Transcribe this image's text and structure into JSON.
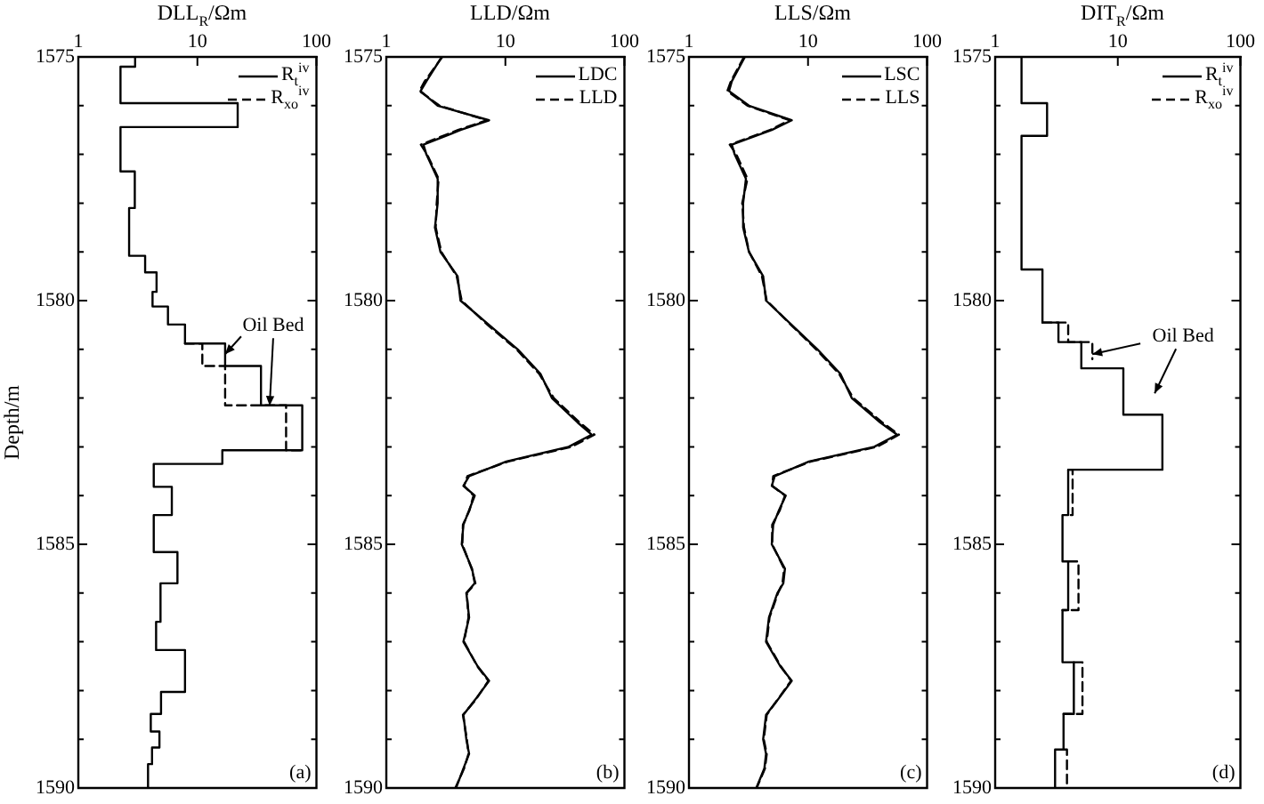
{
  "chart_data": [
    {
      "type": "line",
      "xlabel": "DLL$_{R}$/Ωm",
      "ylabel": "Depth/m",
      "log": "x",
      "xlim": [
        1,
        100
      ],
      "xticks": [
        1,
        10,
        100
      ],
      "ylim": [
        1590,
        1575
      ],
      "yticks": [
        1575,
        {
          "value": 1576,
          "label": null
        },
        {
          "value": 1577,
          "label": null
        },
        {
          "value": 1578,
          "label": null
        },
        {
          "value": 1579,
          "label": null
        },
        1580,
        {
          "value": 1581,
          "label": null
        },
        {
          "value": 1582,
          "label": null
        },
        {
          "value": 1583,
          "label": null
        },
        {
          "value": 1584,
          "label": null
        },
        1585,
        {
          "value": 1586,
          "label": null
        },
        {
          "value": 1587,
          "label": null
        },
        {
          "value": 1588,
          "label": null
        },
        {
          "value": 1589,
          "label": null
        },
        1590
      ],
      "grid": false,
      "legend": "top right",
      "marker": "none",
      "series": [
        {
          "name": "R$_{t}$$^{iv}$",
          "color": "#000000",
          "line_style": "solid",
          "x": [
            3.0,
            3.0,
            2.26,
            2.26,
            21.8,
            21.8,
            2.26,
            2.26,
            2.98,
            2.98,
            2.67,
            2.67,
            3.64,
            3.64,
            4.54,
            4.54,
            4.2,
            4.2,
            5.66,
            5.66,
            7.87,
            7.87,
            17.1,
            17.1,
            34.2,
            34.2,
            76,
            76,
            16.2,
            16.2,
            4.3,
            4.3,
            6.1,
            6.1,
            4.3,
            4.3,
            6.8,
            6.8,
            4.9,
            4.9,
            4.5,
            4.5,
            7.87,
            7.87,
            4.95,
            4.95,
            4.06,
            4.06,
            4.8,
            4.8,
            4.16,
            4.16,
            3.85,
            3.85
          ],
          "values": [
            1575,
            1575.2,
            1575.2,
            1575.95,
            1575.95,
            1576.44,
            1576.44,
            1577.35,
            1577.35,
            1578.1,
            1578.1,
            1579.08,
            1579.08,
            1579.42,
            1579.42,
            1579.82,
            1579.82,
            1580.12,
            1580.12,
            1580.49,
            1580.49,
            1580.88,
            1580.88,
            1581.34,
            1581.34,
            1582.15,
            1582.15,
            1583.07,
            1583.07,
            1583.35,
            1583.35,
            1583.82,
            1583.82,
            1584.4,
            1584.4,
            1585.16,
            1585.16,
            1585.8,
            1585.8,
            1586.59,
            1586.59,
            1587.17,
            1587.17,
            1588.03,
            1588.03,
            1588.48,
            1588.48,
            1588.84,
            1588.84,
            1589.17,
            1589.17,
            1589.51,
            1589.51,
            1590
          ]
        },
        {
          "name": "R$_{xo}$$^{iv}$",
          "color": "#000000",
          "line_style": "dashed",
          "x": [
            7.87,
            11,
            11,
            17.1,
            17.1,
            55.6,
            55.6,
            76
          ],
          "values": [
            1580.88,
            1580.88,
            1581.34,
            1581.34,
            1582.15,
            1582.15,
            1583.07,
            1583.07
          ]
        }
      ],
      "annotations": [
        {
          "text": "Oil Bed",
          "x": 17.1,
          "y": 1581.1
        },
        "(a)"
      ]
    },
    {
      "type": "line",
      "xlabel": "LLD/Ωm",
      "log": "x",
      "xlim": [
        1,
        100
      ],
      "xticks": [
        1,
        10,
        100
      ],
      "ylim": [
        1590,
        1575
      ],
      "yticks": [
        1575,
        {
          "value": 1576,
          "label": null
        },
        {
          "value": 1577,
          "label": null
        },
        {
          "value": 1578,
          "label": null
        },
        {
          "value": 1579,
          "label": null
        },
        1580,
        {
          "value": 1581,
          "label": null
        },
        {
          "value": 1582,
          "label": null
        },
        {
          "value": 1583,
          "label": null
        },
        {
          "value": 1584,
          "label": null
        },
        1585,
        {
          "value": 1586,
          "label": null
        },
        {
          "value": 1587,
          "label": null
        },
        {
          "value": 1588,
          "label": null
        },
        {
          "value": 1589,
          "label": null
        },
        1590
      ],
      "grid": false,
      "legend": "top right",
      "marker": "none",
      "series": [
        {
          "name": "LDC",
          "color": "#000000",
          "line_style": "solid",
          "x": [
            2.92,
            2.17,
            1.94,
            2.7,
            7.3,
            4.2,
            2.05,
            2.17,
            2.7,
            2.7,
            2.56,
            2.85,
            3.97,
            4.2,
            7.3,
            12.7,
            19.7,
            24.6,
            40.4,
            53,
            34,
            10.2,
            4.96,
            4.44,
            5.53,
            4.96,
            4.44,
            4.3,
            5.25,
            5.53,
            4.7,
            4.96,
            4.44,
            5.84,
            7.3,
            5.53,
            4.44,
            4.7,
            4.96,
            4.44,
            3.85
          ],
          "values": [
            1575,
            1575.5,
            1575.7,
            1576,
            1576.3,
            1576.5,
            1576.8,
            1577,
            1577.5,
            1578,
            1578.5,
            1579,
            1579.5,
            1580,
            1580.5,
            1581,
            1581.5,
            1582,
            1582.5,
            1582.75,
            1583,
            1583.3,
            1583.6,
            1583.8,
            1584,
            1584.3,
            1584.6,
            1585,
            1585.5,
            1585.8,
            1586,
            1586.5,
            1587,
            1587.5,
            1587.8,
            1588.2,
            1588.5,
            1589,
            1589.3,
            1589.6,
            1590
          ]
        },
        {
          "name": "LLD",
          "color": "#000000",
          "line_style": "dashed",
          "x": [
            2.95,
            2.1,
            1.9,
            2.8,
            7.0,
            4.0,
            1.95,
            2.2,
            2.75,
            2.65,
            2.6,
            2.9,
            3.9,
            4.3,
            7.1,
            12.4,
            19.2,
            25.5,
            42,
            56,
            36,
            10.6,
            4.8,
            4.5,
            5.4,
            5.0,
            4.4,
            4.35,
            5.2,
            5.6,
            4.75,
            4.9,
            4.5,
            5.8,
            7.2,
            5.6,
            4.4,
            4.75,
            4.9,
            4.5,
            3.8
          ],
          "values": [
            1575,
            1575.5,
            1575.7,
            1576,
            1576.3,
            1576.5,
            1576.8,
            1577,
            1577.5,
            1578,
            1578.5,
            1579,
            1579.5,
            1580,
            1580.5,
            1581,
            1581.5,
            1582,
            1582.5,
            1582.75,
            1583,
            1583.3,
            1583.6,
            1583.8,
            1584,
            1584.3,
            1584.6,
            1585,
            1585.5,
            1585.8,
            1586,
            1586.5,
            1587,
            1587.5,
            1587.8,
            1588.2,
            1588.5,
            1589,
            1589.3,
            1589.6,
            1590
          ]
        }
      ],
      "annotations": [
        "(b)"
      ]
    },
    {
      "type": "line",
      "xlabel": "LLS/Ωm",
      "log": "x",
      "xlim": [
        1,
        100
      ],
      "xticks": [
        1,
        10,
        100
      ],
      "ylim": [
        1590,
        1575
      ],
      "yticks": [
        1575,
        {
          "value": 1576,
          "label": null
        },
        {
          "value": 1577,
          "label": null
        },
        {
          "value": 1578,
          "label": null
        },
        {
          "value": 1579,
          "label": null
        },
        1580,
        {
          "value": 1581,
          "label": null
        },
        {
          "value": 1582,
          "label": null
        },
        {
          "value": 1583,
          "label": null
        },
        {
          "value": 1584,
          "label": null
        },
        1585,
        {
          "value": 1586,
          "label": null
        },
        {
          "value": 1587,
          "label": null
        },
        {
          "value": 1588,
          "label": null
        },
        {
          "value": 1589,
          "label": null
        },
        1590
      ],
      "grid": false,
      "legend": "top right",
      "marker": "none",
      "series": [
        {
          "name": "LSC",
          "color": "#000000",
          "line_style": "solid",
          "x": [
            2.95,
            2.29,
            2.17,
            3.19,
            7.3,
            4.96,
            2.29,
            2.42,
            3.01,
            2.85,
            2.85,
            3.19,
            4.2,
            4.44,
            7.3,
            12,
            18.7,
            23.3,
            40.4,
            56,
            36,
            10.2,
            5.25,
            4.96,
            6.5,
            5.7,
            5.1,
            4.96,
            6.4,
            6.2,
            5.53,
            4.7,
            4.44,
            5.84,
            7.3,
            5.53,
            4.44,
            4.2,
            4.44,
            4.3,
            3.68
          ],
          "values": [
            1575,
            1575.5,
            1575.7,
            1576,
            1576.3,
            1576.5,
            1576.8,
            1577,
            1577.5,
            1578,
            1578.5,
            1579,
            1579.5,
            1580,
            1580.5,
            1581,
            1581.5,
            1582,
            1582.5,
            1582.75,
            1583,
            1583.3,
            1583.6,
            1583.8,
            1584,
            1584.3,
            1584.6,
            1585,
            1585.5,
            1585.8,
            1586,
            1586.5,
            1587,
            1587.5,
            1587.8,
            1588.2,
            1588.5,
            1589,
            1589.3,
            1589.6,
            1590
          ]
        },
        {
          "name": "LLS",
          "color": "#000000",
          "line_style": "dashed",
          "x": [
            2.9,
            2.25,
            2.1,
            3.1,
            7.0,
            4.8,
            2.2,
            2.5,
            3.1,
            2.8,
            2.9,
            3.2,
            4.1,
            4.5,
            7.2,
            11.7,
            18.2,
            24,
            42,
            58,
            38,
            10.6,
            5.1,
            5.0,
            6.4,
            5.8,
            5.0,
            5.0,
            6.3,
            6.1,
            5.6,
            4.75,
            4.5,
            5.9,
            7.2,
            5.5,
            4.5,
            4.25,
            4.5,
            4.35,
            3.7
          ],
          "values": [
            1575,
            1575.5,
            1575.7,
            1576,
            1576.3,
            1576.5,
            1576.8,
            1577,
            1577.5,
            1578,
            1578.5,
            1579,
            1579.5,
            1580,
            1580.5,
            1581,
            1581.5,
            1582,
            1582.5,
            1582.75,
            1583,
            1583.3,
            1583.6,
            1583.8,
            1584,
            1584.3,
            1584.6,
            1585,
            1585.5,
            1585.8,
            1586,
            1586.5,
            1587,
            1587.5,
            1587.8,
            1588.2,
            1588.5,
            1589,
            1589.3,
            1589.6,
            1590
          ]
        }
      ],
      "annotations": [
        "(c)"
      ]
    },
    {
      "type": "line",
      "xlabel": "DIT$_{R}$/Ωm",
      "log": "x",
      "xlim": [
        1,
        100
      ],
      "xticks": [
        1,
        10,
        100
      ],
      "ylim": [
        1590,
        1575
      ],
      "yticks": [
        1575,
        {
          "value": 1576,
          "label": null
        },
        {
          "value": 1577,
          "label": null
        },
        {
          "value": 1578,
          "label": null
        },
        {
          "value": 1579,
          "label": null
        },
        1580,
        {
          "value": 1581,
          "label": null
        },
        {
          "value": 1582,
          "label": null
        },
        {
          "value": 1583,
          "label": null
        },
        {
          "value": 1584,
          "label": null
        },
        1585,
        {
          "value": 1586,
          "label": null
        },
        {
          "value": 1587,
          "label": null
        },
        {
          "value": 1588,
          "label": null
        },
        {
          "value": 1589,
          "label": null
        },
        1590
      ],
      "grid": false,
      "legend": "top right",
      "marker": "none",
      "series": [
        {
          "name": "R$_{t}$$^{iv}$",
          "color": "#000000",
          "line_style": "solid",
          "x": [
            1.64,
            1.64,
            2.65,
            2.65,
            1.64,
            1.64,
            2.43,
            2.43,
            3.28,
            3.28,
            5.04,
            5.04,
            11.1,
            11.1,
            23.1,
            23.1,
            3.94,
            3.94,
            3.54,
            3.54,
            3.94,
            3.94,
            3.54,
            3.54,
            4.38,
            4.38,
            3.61,
            3.61,
            3.08,
            3.08
          ],
          "values": [
            1575,
            1575.95,
            1575.95,
            1576.62,
            1576.62,
            1579.36,
            1579.36,
            1580.45,
            1580.45,
            1580.85,
            1580.85,
            1581.39,
            1581.39,
            1582.34,
            1582.34,
            1583.47,
            1583.47,
            1584.4,
            1584.4,
            1585.35,
            1585.35,
            1586.35,
            1586.35,
            1587.42,
            1587.42,
            1588.48,
            1588.48,
            1589.21,
            1589.21,
            1590
          ]
        },
        {
          "name": "R$_{xo}$$^{iv}$",
          "color": "#000000",
          "line_style": "dashed",
          "x": [
            2.43,
            3.94,
            3.94,
            6.2,
            6.2,
            null,
            3.94,
            4.28,
            4.28,
            3.94,
            null,
            3.94,
            4.78,
            4.78,
            3.54,
            null,
            4.38,
            5.15,
            5.15,
            3.61,
            null,
            3.61,
            3.85,
            3.85
          ],
          "values": [
            1580.45,
            1580.45,
            1580.85,
            1580.85,
            1581.2,
            null,
            1583.47,
            1583.47,
            1584.4,
            1584.4,
            null,
            1585.35,
            1585.35,
            1586.35,
            1586.35,
            null,
            1587.42,
            1587.42,
            1588.48,
            1588.48,
            null,
            1589.21,
            1589.21,
            1590
          ]
        }
      ],
      "annotations": [
        {
          "text": "Oil Bed",
          "x": 6.2,
          "y": 1581.1
        },
        "(d)"
      ]
    }
  ]
}
